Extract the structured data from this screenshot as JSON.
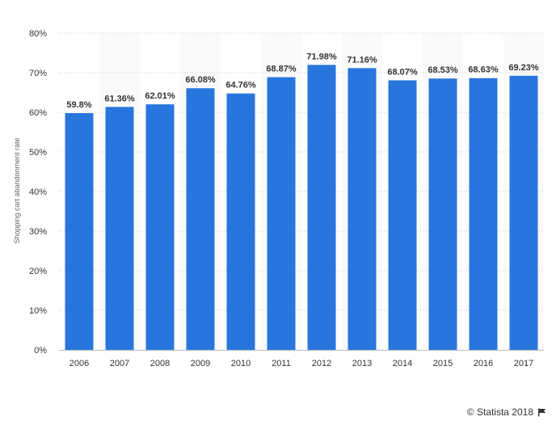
{
  "chart_data": {
    "type": "bar",
    "categories": [
      "2006",
      "2007",
      "2008",
      "2009",
      "2010",
      "2011",
      "2012",
      "2013",
      "2014",
      "2015",
      "2016",
      "2017"
    ],
    "values": [
      59.8,
      61.36,
      62.01,
      66.08,
      64.76,
      68.87,
      71.98,
      71.16,
      68.07,
      68.53,
      68.63,
      69.23
    ],
    "data_labels": [
      "59.8%",
      "61.36%",
      "62.01%",
      "66.08%",
      "64.76%",
      "68.87%",
      "71.98%",
      "71.16%",
      "68.07%",
      "68.53%",
      "68.63%",
      "69.23%"
    ],
    "title": "",
    "xlabel": "",
    "ylabel": "Shopping cart abandonment rate",
    "ylim": [
      0,
      80
    ],
    "y_ticks": [
      0,
      10,
      20,
      30,
      40,
      50,
      60,
      70,
      80
    ],
    "y_tick_labels": [
      "0%",
      "10%",
      "20%",
      "30%",
      "40%",
      "50%",
      "60%",
      "70%",
      "80%"
    ],
    "grid": true,
    "bar_color": "#2876dd"
  },
  "credit": {
    "text": "© Statista 2018",
    "icon": "flag-icon"
  }
}
